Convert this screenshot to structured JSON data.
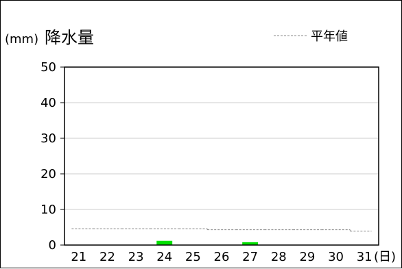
{
  "chart_data": {
    "type": "bar",
    "title": "降水量",
    "unit_label": "(mm)",
    "xunit_label": "(日)",
    "legend": {
      "normal_label": "平年値",
      "placement": "top-right"
    },
    "categories": [
      "21",
      "22",
      "23",
      "24",
      "25",
      "26",
      "27",
      "28",
      "29",
      "30",
      "31"
    ],
    "series": [
      {
        "values": [
          0,
          0,
          0,
          1.2,
          0,
          0,
          0.8,
          0,
          0,
          0,
          0
        ]
      }
    ],
    "normal_line": {
      "values": [
        4.6,
        4.6,
        4.6,
        4.6,
        4.6,
        4.3,
        4.3,
        4.3,
        4.3,
        4.3,
        3.9
      ]
    },
    "ylim": [
      0,
      50
    ],
    "yticks": [
      0,
      10,
      20,
      30,
      40,
      50
    ],
    "grid": true,
    "colors": {
      "bar": "#00e000",
      "normal": "#888888",
      "grid": "#cccccc",
      "axis": "#000000"
    }
  }
}
